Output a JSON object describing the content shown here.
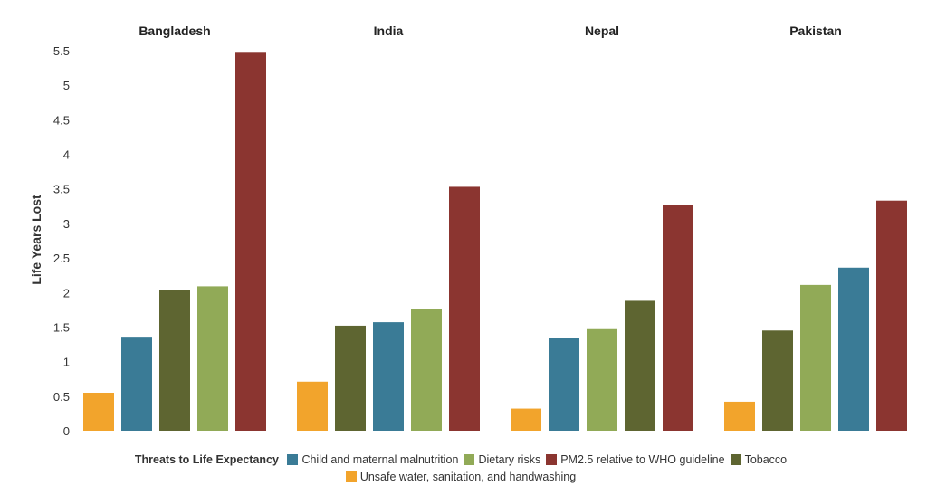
{
  "chart_data": {
    "type": "bar",
    "title": "",
    "xlabel": "",
    "ylabel": "Life Years Lost",
    "ylim": [
      0,
      5.5
    ],
    "yticks": [
      "0",
      "0.5",
      "1",
      "1.5",
      "2",
      "2.5",
      "3",
      "3.5",
      "4",
      "4.5",
      "5",
      "5.5"
    ],
    "grid": false,
    "legend_title": "Threats to Life Expectancy",
    "legend_position": "bottom",
    "series_info": {
      "child": {
        "name": "Child and maternal malnutrition",
        "color": "#3a7b96"
      },
      "dietary": {
        "name": "Dietary risks",
        "color": "#91aa57"
      },
      "pm25": {
        "name": "PM2.5 relative to WHO guideline",
        "color": "#8b3530"
      },
      "tobacco": {
        "name": "Tobacco",
        "color": "#5e6531"
      },
      "water": {
        "name": "Unsafe water, sanitation, and handwashing",
        "color": "#f2a42c"
      }
    },
    "legend_order": [
      "child",
      "dietary",
      "pm25",
      "tobacco",
      "water"
    ],
    "groups": [
      {
        "name": "Bangladesh",
        "bars": [
          {
            "key": "water",
            "value": 0.55
          },
          {
            "key": "child",
            "value": 1.36
          },
          {
            "key": "tobacco",
            "value": 2.04
          },
          {
            "key": "dietary",
            "value": 2.09
          },
          {
            "key": "pm25",
            "value": 5.47
          }
        ]
      },
      {
        "name": "India",
        "bars": [
          {
            "key": "water",
            "value": 0.71
          },
          {
            "key": "tobacco",
            "value": 1.52
          },
          {
            "key": "child",
            "value": 1.57
          },
          {
            "key": "dietary",
            "value": 1.76
          },
          {
            "key": "pm25",
            "value": 3.53
          }
        ]
      },
      {
        "name": "Nepal",
        "bars": [
          {
            "key": "water",
            "value": 0.32
          },
          {
            "key": "child",
            "value": 1.34
          },
          {
            "key": "dietary",
            "value": 1.47
          },
          {
            "key": "tobacco",
            "value": 1.88
          },
          {
            "key": "pm25",
            "value": 3.27
          }
        ]
      },
      {
        "name": "Pakistan",
        "bars": [
          {
            "key": "water",
            "value": 0.42
          },
          {
            "key": "tobacco",
            "value": 1.45
          },
          {
            "key": "dietary",
            "value": 2.11
          },
          {
            "key": "child",
            "value": 2.36
          },
          {
            "key": "pm25",
            "value": 3.33
          }
        ]
      }
    ]
  }
}
